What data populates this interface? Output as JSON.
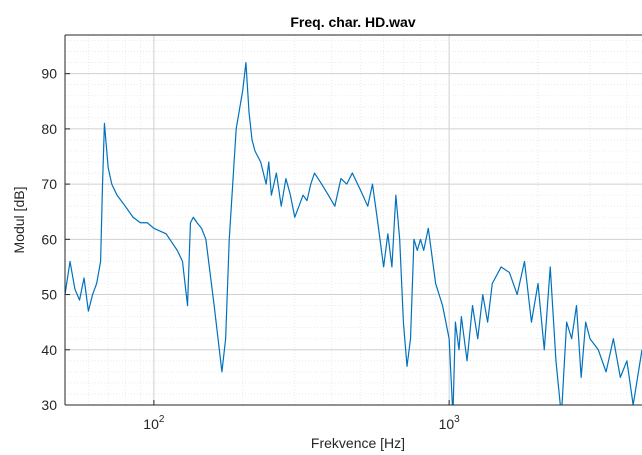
{
  "chart_data": {
    "type": "line",
    "title": "Freq. char. HD.wav",
    "xlabel": "Frekvence [Hz]",
    "ylabel": "Modul [dB]",
    "xscale": "log",
    "xlim": [
      50,
      4500
    ],
    "ylim": [
      30,
      97
    ],
    "grid": true,
    "minor_grid": true,
    "line_color": "#0072BD",
    "grid_color": "#dcdcdc",
    "yticks": [
      {
        "value": 30,
        "label": "30"
      },
      {
        "value": 40,
        "label": "40"
      },
      {
        "value": 50,
        "label": "50"
      },
      {
        "value": 60,
        "label": "60"
      },
      {
        "value": 70,
        "label": "70"
      },
      {
        "value": 80,
        "label": "80"
      },
      {
        "value": 90,
        "label": "90"
      }
    ],
    "xticks": [
      {
        "value": 100,
        "base": "10",
        "exp": "2"
      },
      {
        "value": 1000,
        "base": "10",
        "exp": "3"
      }
    ],
    "series": [
      {
        "x": [
          50,
          52,
          54,
          56,
          58,
          60,
          62,
          64,
          66,
          67,
          68,
          70,
          72,
          75,
          80,
          85,
          90,
          95,
          100,
          110,
          120,
          125,
          130,
          133,
          136,
          140,
          145,
          150,
          160,
          170,
          175,
          180,
          190,
          200,
          205,
          210,
          215,
          220,
          230,
          240,
          245,
          250,
          260,
          270,
          280,
          290,
          300,
          310,
          320,
          330,
          340,
          350,
          370,
          390,
          410,
          430,
          450,
          470,
          500,
          530,
          550,
          570,
          600,
          620,
          640,
          660,
          680,
          700,
          720,
          740,
          760,
          780,
          800,
          820,
          850,
          900,
          950,
          1000,
          1030,
          1050,
          1080,
          1100,
          1150,
          1200,
          1250,
          1300,
          1350,
          1400,
          1500,
          1600,
          1700,
          1800,
          1900,
          2000,
          2100,
          2200,
          2300,
          2400,
          2500,
          2600,
          2700,
          2800,
          2900,
          3000,
          3200,
          3400,
          3600,
          3800,
          4000,
          4200,
          4500
        ],
        "y": [
          50,
          56,
          51,
          49,
          53,
          47,
          50,
          52,
          56,
          70,
          81,
          73,
          70,
          68,
          66,
          64,
          63,
          63,
          62,
          61,
          58,
          56,
          48,
          63,
          64,
          63,
          62,
          60,
          48,
          36,
          42,
          60,
          80,
          87,
          92,
          83,
          78,
          76,
          74,
          70,
          74,
          68,
          72,
          66,
          71,
          68,
          64,
          66,
          68,
          67,
          70,
          72,
          70,
          68,
          66,
          71,
          70,
          72,
          69,
          66,
          70,
          64,
          55,
          61,
          55,
          68,
          60,
          45,
          37,
          42,
          60,
          58,
          60,
          58,
          62,
          52,
          48,
          42,
          28,
          45,
          40,
          46,
          38,
          48,
          42,
          50,
          45,
          52,
          55,
          54,
          50,
          56,
          45,
          52,
          40,
          55,
          38,
          28,
          45,
          42,
          48,
          35,
          45,
          42,
          40,
          36,
          42,
          35,
          38,
          30,
          40
        ]
      }
    ]
  }
}
